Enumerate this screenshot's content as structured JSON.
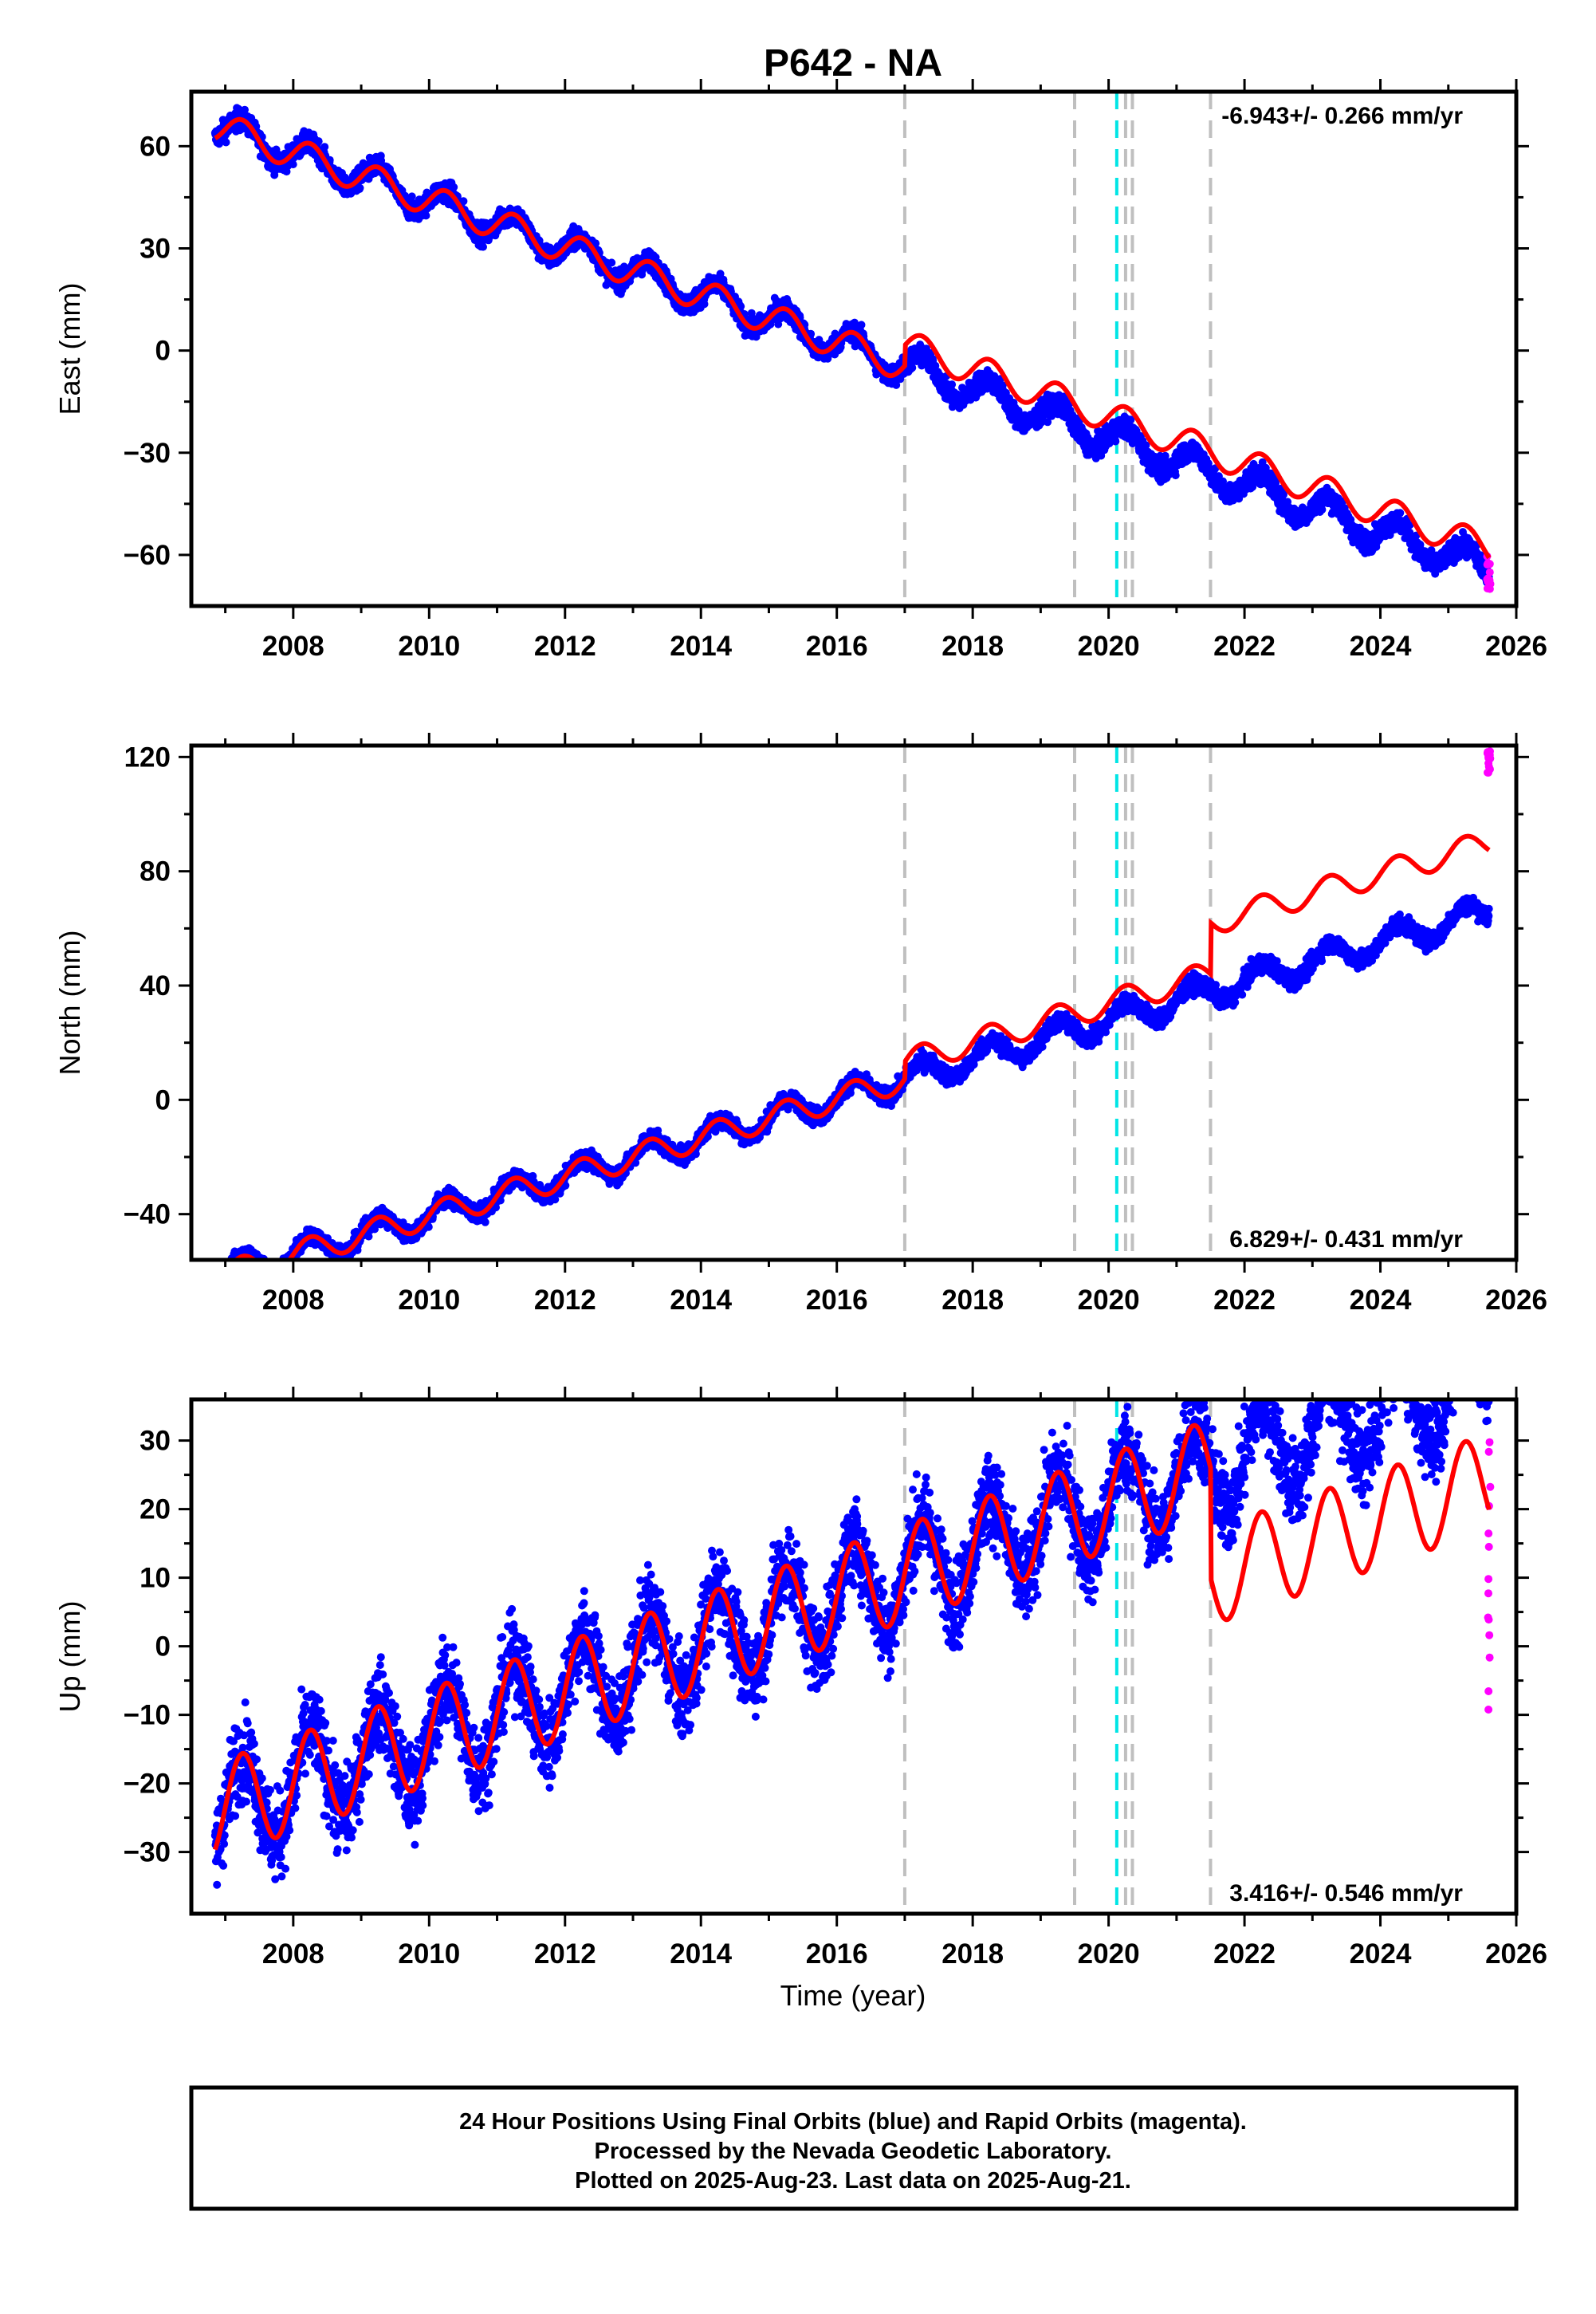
{
  "title": "P642 - NA",
  "footer": {
    "lines": [
      "24 Hour Positions Using Final Orbits (blue) and Rapid Orbits (magenta).",
      "Processed by the Nevada Geodetic Laboratory.",
      "Plotted on 2025-Aug-23. Last data on 2025-Aug-21."
    ]
  },
  "colors": {
    "final_orbits": "#0000ff",
    "rapid_orbits": "#ff00ff",
    "model": "#ff0000",
    "gray_event": "#bfbfbf",
    "cyan_event": "#00e5e5"
  },
  "chart_data": [
    {
      "type": "scatter",
      "name": "east",
      "ylabel": "East (mm)",
      "xlabel": "",
      "xlim": [
        2006.5,
        2026.0
      ],
      "ylim": [
        -75,
        76
      ],
      "xticks": [
        2008,
        2010,
        2012,
        2014,
        2016,
        2018,
        2020,
        2022,
        2024,
        2026
      ],
      "yticks": [
        60,
        30,
        0,
        -30,
        -60
      ],
      "ytick_labels": [
        "60",
        "30",
        "0",
        "−30",
        "−60"
      ],
      "rate_label": "-6.943+/- 0.266 mm/yr",
      "rate_position": "top-right",
      "trend": {
        "start_year": 2006.85,
        "start_value": 66,
        "rate": -6.943,
        "seasonal_amplitude": 4.5
      },
      "model_offsets": [
        {
          "year": 2017.0,
          "value": 6
        },
        {
          "year": 2021.5,
          "value": 0
        }
      ],
      "data_end_values": [
        -70,
        -60
      ]
    },
    {
      "type": "scatter",
      "name": "north",
      "ylabel": "North (mm)",
      "xlabel": "",
      "xlim": [
        2006.5,
        2026.0
      ],
      "ylim": [
        -56,
        124
      ],
      "xticks": [
        2008,
        2010,
        2012,
        2014,
        2016,
        2018,
        2020,
        2022,
        2024,
        2026
      ],
      "yticks": [
        120,
        80,
        40,
        0,
        -40
      ],
      "ytick_labels": [
        "120",
        "80",
        "40",
        "0",
        "−40"
      ],
      "rate_label": "6.829+/- 0.431 mm/yr",
      "rate_position": "bottom-right",
      "trend": {
        "start_year": 2006.85,
        "start_value": -62,
        "rate": 6.829,
        "seasonal_amplitude": 4.5
      },
      "model_offsets": [
        {
          "year": 2017.0,
          "value": 6
        },
        {
          "year": 2021.5,
          "value": 18
        }
      ],
      "data_end_values": [
        114,
        122
      ]
    },
    {
      "type": "scatter",
      "name": "up",
      "ylabel": "Up (mm)",
      "xlabel": "Time (year)",
      "xlim": [
        2006.5,
        2026.0
      ],
      "ylim": [
        -39,
        36
      ],
      "xticks": [
        2008,
        2010,
        2012,
        2014,
        2016,
        2018,
        2020,
        2022,
        2024,
        2026
      ],
      "yticks": [
        30,
        20,
        10,
        0,
        -10,
        -20,
        -30
      ],
      "ytick_labels": [
        "30",
        "20",
        "10",
        "0",
        "−10",
        "−20",
        "−30"
      ],
      "rate_label": "3.416+/- 0.546 mm/yr",
      "rate_position": "bottom-right",
      "trend": {
        "start_year": 2006.85,
        "start_value": -24,
        "rate": 3.416,
        "seasonal_amplitude": 7
      },
      "model_offsets": [
        {
          "year": 2017.0,
          "value": 0
        },
        {
          "year": 2021.5,
          "value": -16
        }
      ],
      "data_end_values": [
        -10,
        31
      ]
    }
  ],
  "event_lines": {
    "gray": [
      2017.0,
      2019.5,
      2020.25,
      2020.35,
      2021.5
    ],
    "cyan": [
      2020.12
    ]
  }
}
